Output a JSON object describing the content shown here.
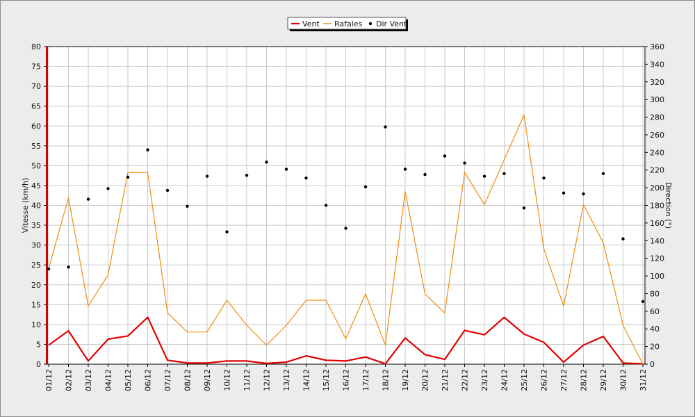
{
  "chart_data": {
    "type": "line",
    "title": "",
    "categories": [
      "01/12",
      "02/12",
      "03/12",
      "04/12",
      "05/12",
      "06/12",
      "07/12",
      "08/12",
      "09/12",
      "10/12",
      "11/12",
      "12/12",
      "13/12",
      "14/12",
      "15/12",
      "16/12",
      "17/12",
      "18/12",
      "19/12",
      "20/12",
      "21/12",
      "22/12",
      "23/12",
      "24/12",
      "25/12",
      "26/12",
      "27/12",
      "28/12",
      "29/12",
      "30/12",
      "31/12"
    ],
    "y_left": {
      "label": "Vitesse (km/h)",
      "min": 0,
      "max": 80,
      "step": 5
    },
    "y_right": {
      "label": "Direction (°)",
      "min": 0,
      "max": 360,
      "step": 20
    },
    "grid": true,
    "legend_position": "top-center",
    "series": [
      {
        "name": "Vent",
        "axis": "left",
        "style": "line",
        "color": "#e00000",
        "values": [
          4.8,
          8.4,
          0.8,
          6.3,
          7.1,
          11.8,
          1.0,
          0.3,
          0.3,
          0.8,
          0.8,
          0.2,
          0.5,
          2.1,
          1.0,
          0.8,
          1.8,
          0.1,
          6.6,
          2.4,
          1.2,
          8.5,
          7.4,
          11.8,
          7.6,
          5.5,
          0.5,
          4.8,
          7.0,
          0.3,
          0.1
        ]
      },
      {
        "name": "Rafales",
        "axis": "left",
        "style": "line",
        "color": "#f08c10",
        "values": [
          24.1,
          41.9,
          14.6,
          22.5,
          48.3,
          48.3,
          12.9,
          8.1,
          8.1,
          16.1,
          9.8,
          4.8,
          9.8,
          16.1,
          16.1,
          6.4,
          17.7,
          4.8,
          43.5,
          17.7,
          12.9,
          48.3,
          40.2,
          51.5,
          62.8,
          29.0,
          14.6,
          40.2,
          30.6,
          9.8,
          0.0
        ]
      },
      {
        "name": "Dir Vent",
        "axis": "right",
        "style": "points",
        "color": "#000000",
        "values": [
          108,
          110,
          187,
          199,
          212,
          243,
          197,
          179,
          213,
          150,
          214,
          229,
          221,
          211,
          180,
          154,
          201,
          269,
          221,
          215,
          236,
          228,
          213,
          216,
          177,
          211,
          194,
          193,
          216,
          142,
          71
        ]
      }
    ]
  }
}
